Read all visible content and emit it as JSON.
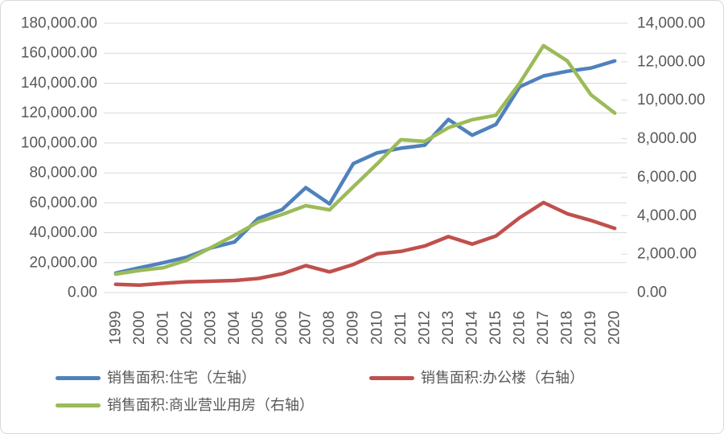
{
  "chart_data": {
    "type": "line",
    "title": "",
    "categories": [
      "1999",
      "2000",
      "2001",
      "2002",
      "2003",
      "2004",
      "2005",
      "2006",
      "2007",
      "2008",
      "2009",
      "2010",
      "2011",
      "2012",
      "2013",
      "2014",
      "2015",
      "2016",
      "2017",
      "2018",
      "2019",
      "2020"
    ],
    "series": [
      {
        "name": "销售面积:住宅（左轴）",
        "axis": "left",
        "color": "#4F81BD",
        "values": [
          12998,
          16570,
          19939,
          23702,
          29779,
          33820,
          49588,
          55423,
          70136,
          59280,
          86185,
          93377,
          96528,
          98468,
          115723,
          105182,
          112406,
          137540,
          144789,
          147929,
          150144,
          154878
        ]
      },
      {
        "name": "销售面积:办公楼（右轴）",
        "axis": "right",
        "color": "#C0504D",
        "values": [
          430,
          390,
          480,
          560,
          590,
          625,
          730,
          975,
          1400,
          1075,
          1460,
          2010,
          2140,
          2420,
          2910,
          2520,
          2940,
          3890,
          4680,
          4100,
          3750,
          3340
        ]
      },
      {
        "name": "销售面积:商业营业用房（右轴）",
        "axis": "right",
        "color": "#9BBB59",
        "values": [
          963,
          1150,
          1290,
          1690,
          2330,
          2980,
          3670,
          4060,
          4516,
          4300,
          5500,
          6690,
          7950,
          7860,
          8570,
          8990,
          9220,
          10890,
          12840,
          12050,
          10280,
          9330
        ]
      }
    ],
    "left_axis": {
      "min": 0,
      "max": 180000,
      "step": 20000,
      "tick_labels": [
        "180,000.00",
        "160,000.00",
        "140,000.00",
        "120,000.00",
        "100,000.00",
        "80,000.00",
        "60,000.00",
        "40,000.00",
        "20,000.00",
        "0.00"
      ]
    },
    "right_axis": {
      "min": 0,
      "max": 14000,
      "step": 2000,
      "tick_labels": [
        "14,000.00",
        "12,000.00",
        "10,000.00",
        "8,000.00",
        "6,000.00",
        "4,000.00",
        "2,000.00",
        "0.00"
      ]
    },
    "grid": true,
    "legend_position": "bottom"
  },
  "legend": {
    "items": [
      {
        "label": "销售面积:住宅（左轴）",
        "color": "#4F81BD"
      },
      {
        "label": "销售面积:办公楼（右轴）",
        "color": "#C0504D"
      },
      {
        "label": "销售面积:商业营业用房（右轴）",
        "color": "#9BBB59"
      }
    ]
  },
  "colors": {
    "gridline": "#D9D9D9",
    "axis_text": "#595959",
    "background": "#FFFFFF",
    "series_blue": "#4F81BD",
    "series_red": "#C0504D",
    "series_green": "#9BBB59"
  }
}
